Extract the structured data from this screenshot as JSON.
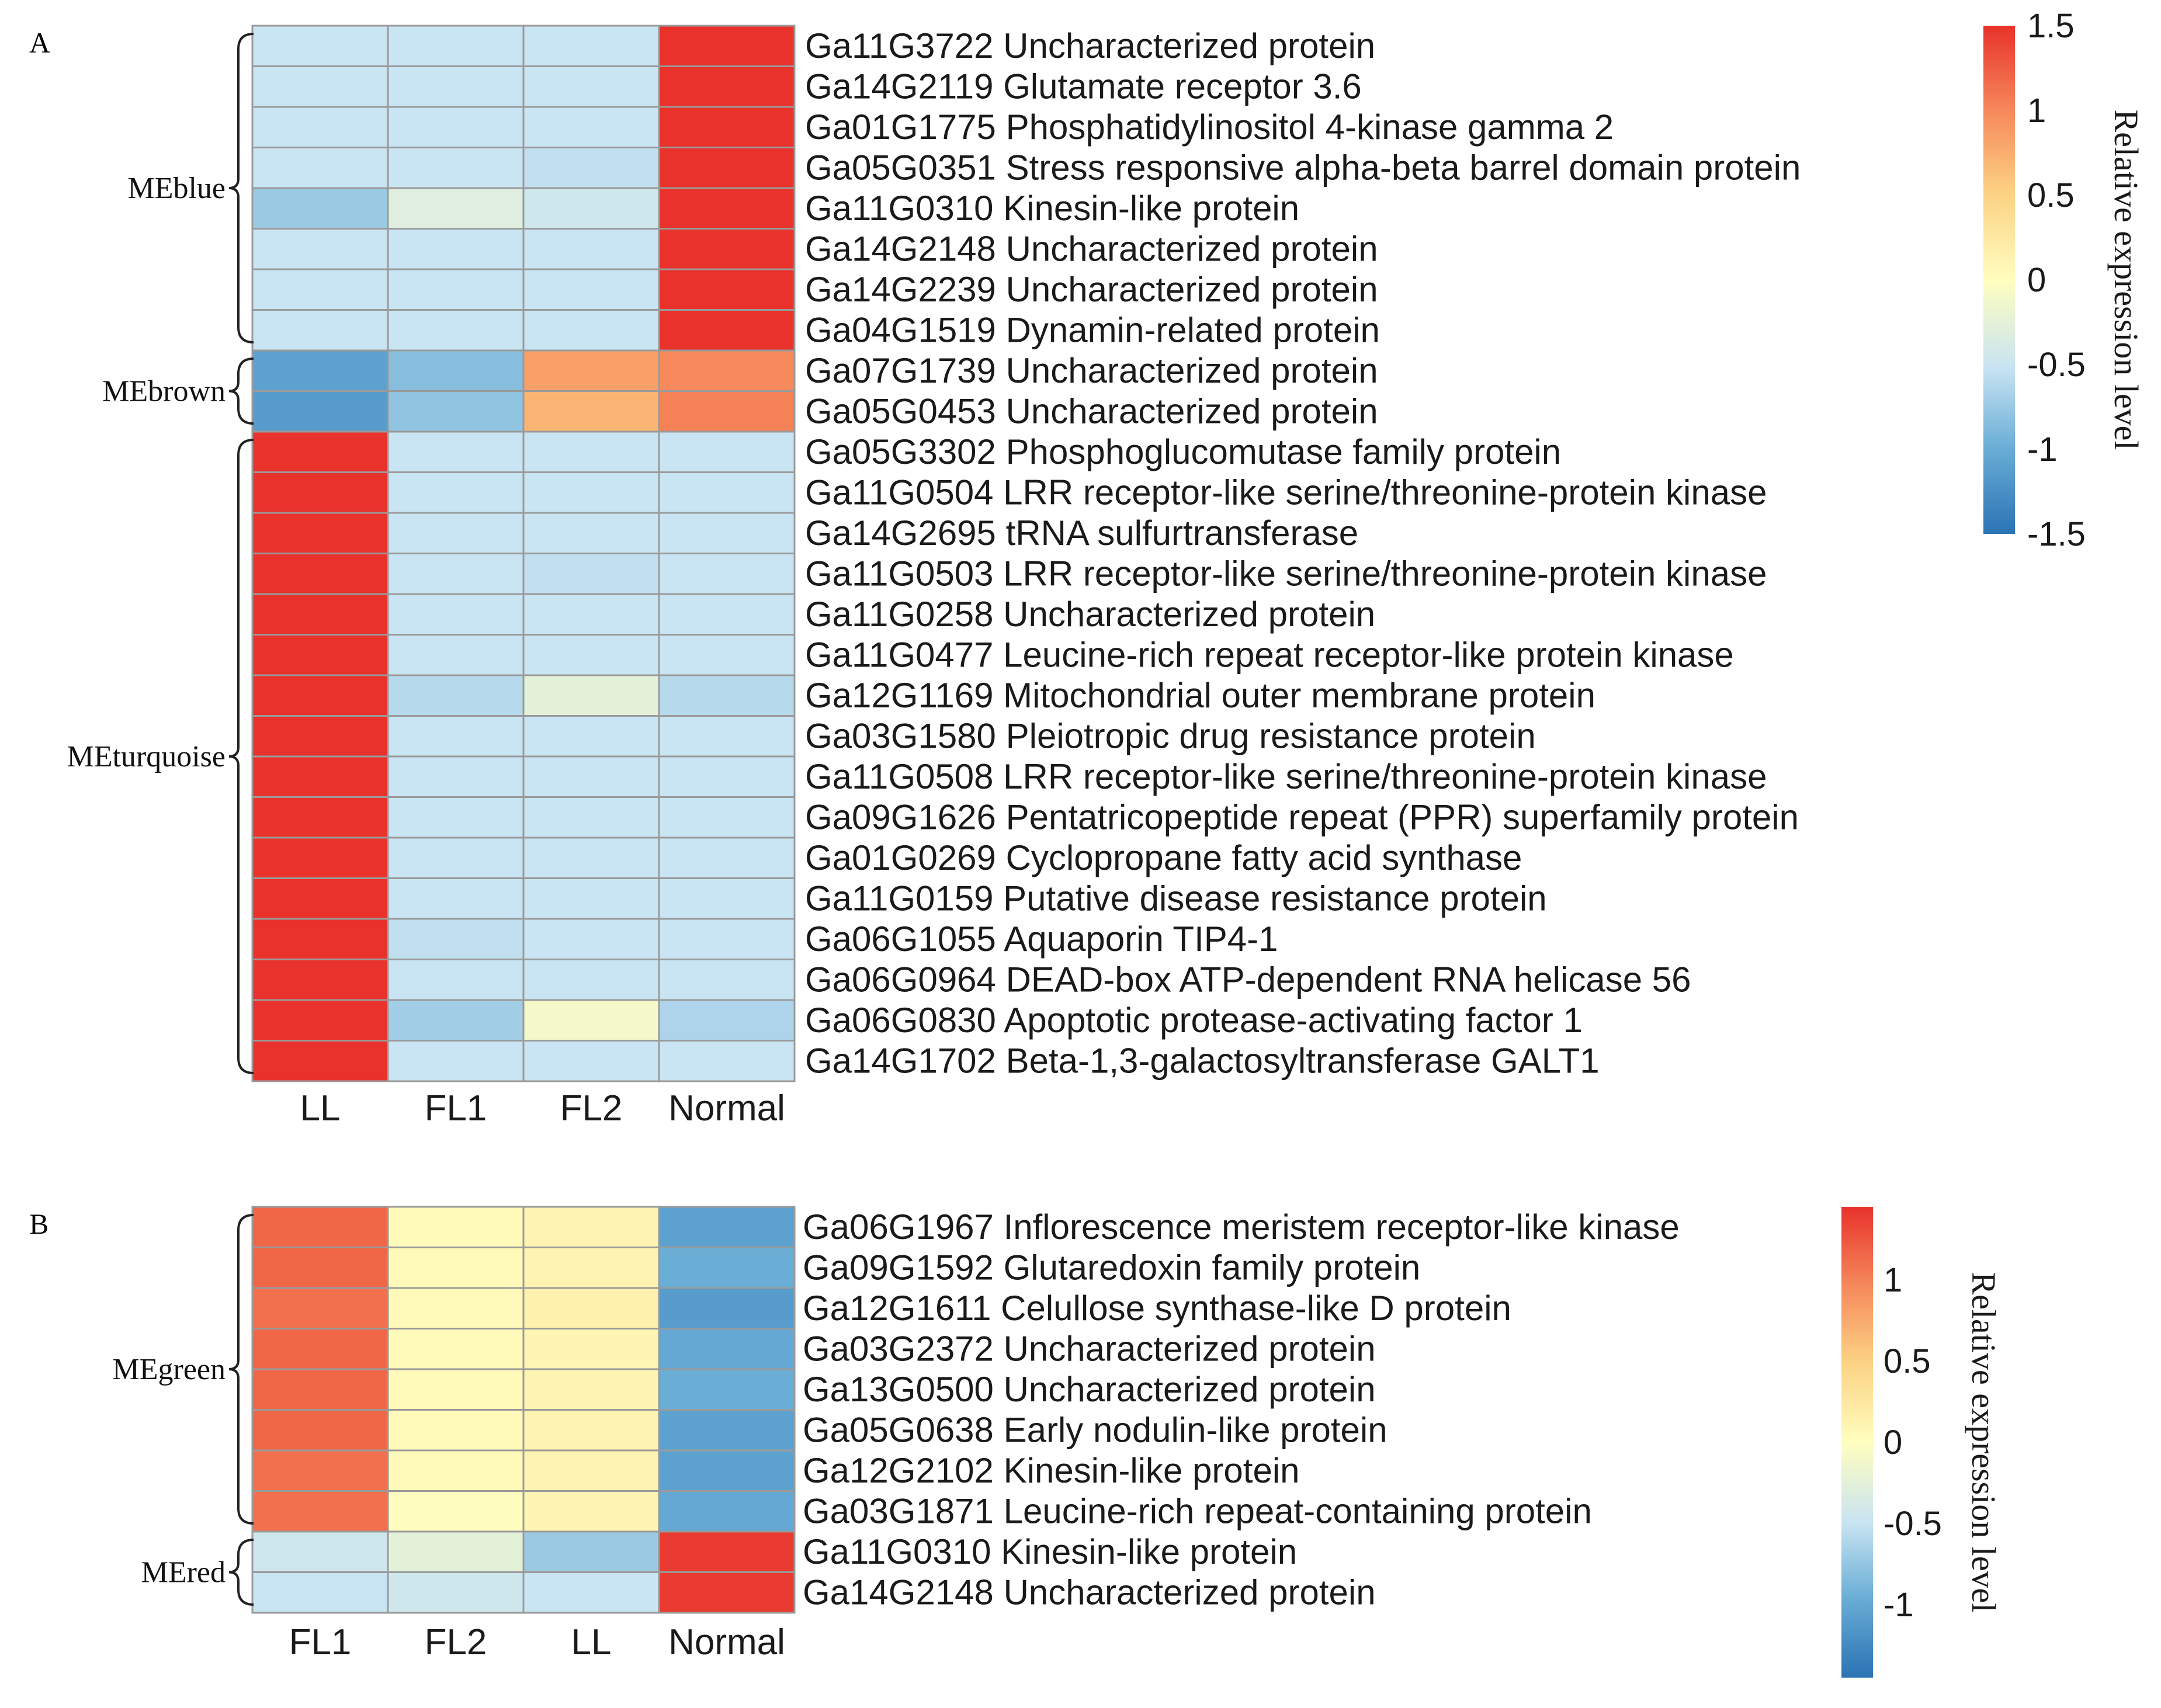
{
  "chart_data": [
    {
      "panel_label": "A",
      "type": "heatmap",
      "columns": [
        "LL",
        "FL1",
        "FL2",
        "Normal"
      ],
      "legend": {
        "title": "Relative expression level",
        "ticks": [
          "1.5",
          "1",
          "0.5",
          "0",
          "-0.5",
          "-1",
          "-1.5"
        ],
        "tick_values": [
          1.5,
          1,
          0.5,
          0,
          -0.5,
          -1,
          -1.5
        ],
        "min": -1.5,
        "max": 1.5
      },
      "modules": [
        {
          "name": "MEblue",
          "start": 0,
          "end": 7
        },
        {
          "name": "MEbrown",
          "start": 8,
          "end": 9
        },
        {
          "name": "MEturquoise",
          "start": 10,
          "end": 25
        }
      ],
      "rows": [
        {
          "label": "Ga11G3722 Uncharacterized protein",
          "values": [
            -0.5,
            -0.5,
            -0.5,
            1.5
          ]
        },
        {
          "label": "Ga14G2119 Glutamate receptor 3.6",
          "values": [
            -0.5,
            -0.5,
            -0.5,
            1.5
          ]
        },
        {
          "label": "Ga01G1775 Phosphatidylinositol 4-kinase gamma 2",
          "values": [
            -0.5,
            -0.5,
            -0.5,
            1.5
          ]
        },
        {
          "label": "Ga05G0351 Stress responsive alpha-beta barrel domain protein",
          "values": [
            -0.5,
            -0.5,
            -0.55,
            1.5
          ]
        },
        {
          "label": "Ga11G0310 Kinesin-like protein",
          "values": [
            -0.75,
            -0.3,
            -0.45,
            1.5
          ]
        },
        {
          "label": "Ga14G2148 Uncharacterized protein",
          "values": [
            -0.5,
            -0.5,
            -0.5,
            1.5
          ]
        },
        {
          "label": "Ga14G2239 Uncharacterized protein",
          "values": [
            -0.5,
            -0.5,
            -0.5,
            1.5
          ]
        },
        {
          "label": "Ga04G1519 Dynamin-related protein",
          "values": [
            -0.5,
            -0.5,
            -0.5,
            1.5
          ]
        },
        {
          "label": "Ga07G1739 Uncharacterized protein",
          "values": [
            -1.1,
            -0.85,
            0.85,
            1.0
          ]
        },
        {
          "label": "Ga05G0453 Uncharacterized protein",
          "values": [
            -1.15,
            -0.8,
            0.7,
            1.05
          ]
        },
        {
          "label": "Ga05G3302 Phosphoglucomutase family protein",
          "values": [
            1.5,
            -0.5,
            -0.5,
            -0.5
          ]
        },
        {
          "label": "Ga11G0504 LRR receptor-like serine/threonine-protein kinase",
          "values": [
            1.5,
            -0.5,
            -0.5,
            -0.5
          ]
        },
        {
          "label": "Ga14G2695 tRNA sulfurtransferase",
          "values": [
            1.5,
            -0.5,
            -0.5,
            -0.5
          ]
        },
        {
          "label": "Ga11G0503 LRR receptor-like serine/threonine-protein kinase",
          "values": [
            1.5,
            -0.5,
            -0.55,
            -0.5
          ]
        },
        {
          "label": "Ga11G0258 Uncharacterized protein",
          "values": [
            1.5,
            -0.5,
            -0.5,
            -0.5
          ]
        },
        {
          "label": "Ga11G0477 Leucine-rich repeat receptor-like protein kinase",
          "values": [
            1.5,
            -0.5,
            -0.5,
            -0.5
          ]
        },
        {
          "label": "Ga12G1169 Mitochondrial outer membrane protein",
          "values": [
            1.5,
            -0.6,
            -0.25,
            -0.6
          ]
        },
        {
          "label": "Ga03G1580 Pleiotropic drug resistance protein",
          "values": [
            1.5,
            -0.5,
            -0.5,
            -0.5
          ]
        },
        {
          "label": "Ga11G0508 LRR receptor-like serine/threonine-protein kinase",
          "values": [
            1.5,
            -0.5,
            -0.5,
            -0.5
          ]
        },
        {
          "label": "Ga09G1626 Pentatricopeptide repeat (PPR) superfamily protein",
          "values": [
            1.5,
            -0.5,
            -0.5,
            -0.5
          ]
        },
        {
          "label": "Ga01G0269 Cyclopropane fatty acid synthase",
          "values": [
            1.5,
            -0.5,
            -0.5,
            -0.5
          ]
        },
        {
          "label": "Ga11G0159 Putative disease resistance protein",
          "values": [
            1.5,
            -0.5,
            -0.5,
            -0.5
          ]
        },
        {
          "label": "Ga06G1055 Aquaporin TIP4-1",
          "values": [
            1.5,
            -0.55,
            -0.5,
            -0.5
          ]
        },
        {
          "label": "Ga06G0964 DEAD-box ATP-dependent RNA helicase 56",
          "values": [
            1.5,
            -0.5,
            -0.5,
            -0.5
          ]
        },
        {
          "label": "Ga06G0830 Apoptotic protease-activating factor 1",
          "values": [
            1.5,
            -0.7,
            -0.1,
            -0.65
          ]
        },
        {
          "label": "Ga14G1702 Beta-1,3-galactosyltransferase GALT1",
          "values": [
            1.5,
            -0.5,
            -0.5,
            -0.5
          ]
        }
      ]
    },
    {
      "panel_label": "B",
      "type": "heatmap",
      "columns": [
        "FL1",
        "FL2",
        "LL",
        "Normal"
      ],
      "legend": {
        "title": "Relative expression level",
        "ticks": [
          "1",
          "0.5",
          "0",
          "-0.5",
          "-1"
        ],
        "tick_values": [
          1,
          0.5,
          0,
          -0.5,
          -1
        ],
        "min": -1.45,
        "max": 1.45
      },
      "modules": [
        {
          "name": "MEgreen",
          "start": 0,
          "end": 7
        },
        {
          "name": "MEred",
          "start": 8,
          "end": 9
        }
      ],
      "rows": [
        {
          "label": "Ga06G1967 Inflorescence meristem receptor-like kinase",
          "values": [
            1.2,
            0.05,
            0.12,
            -1.1
          ]
        },
        {
          "label": "Ga09G1592 Glutaredoxin family protein",
          "values": [
            1.2,
            0.05,
            0.12,
            -1.0
          ]
        },
        {
          "label": "Ga12G1611 Celullose synthase-like D protein",
          "values": [
            1.15,
            0.05,
            0.15,
            -1.15
          ]
        },
        {
          "label": "Ga03G2372 Uncharacterized protein",
          "values": [
            1.2,
            0.05,
            0.1,
            -1.05
          ]
        },
        {
          "label": "Ga13G0500 Uncharacterized protein",
          "values": [
            1.2,
            0.05,
            0.1,
            -1.0
          ]
        },
        {
          "label": "Ga05G0638 Early nodulin-like protein",
          "values": [
            1.2,
            0.05,
            0.12,
            -1.1
          ]
        },
        {
          "label": "Ga12G2102 Kinesin-like protein",
          "values": [
            1.15,
            0.05,
            0.12,
            -1.1
          ]
        },
        {
          "label": "Ga03G1871 Leucine-rich repeat-containing protein",
          "values": [
            1.15,
            0.0,
            0.1,
            -1.05
          ]
        },
        {
          "label": "Ga11G0310 Kinesin-like protein",
          "values": [
            -0.45,
            -0.25,
            -0.75,
            1.45
          ]
        },
        {
          "label": "Ga14G2148 Uncharacterized protein",
          "values": [
            -0.5,
            -0.45,
            -0.5,
            1.45
          ]
        }
      ]
    }
  ]
}
